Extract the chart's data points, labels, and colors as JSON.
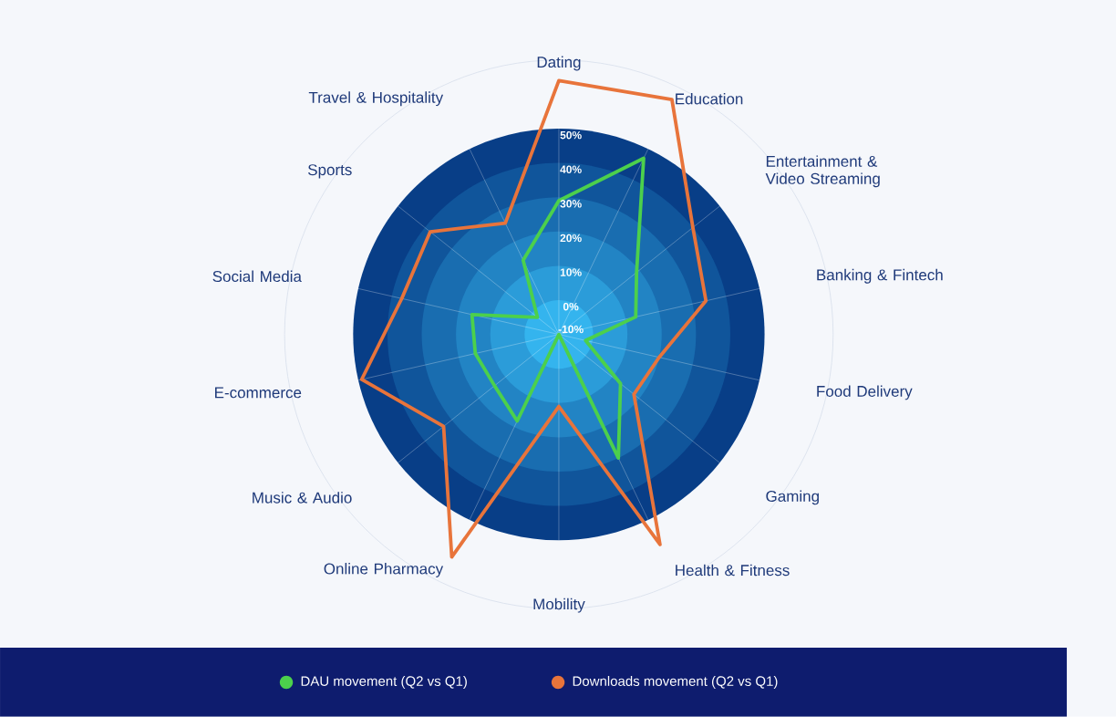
{
  "chart_data": {
    "type": "radar",
    "categories": [
      "Dating",
      "Education",
      "Entertainment & Video Streaming",
      "Banking & Fintech",
      "Food Delivery",
      "Gaming",
      "Health & Fitness",
      "Mobility",
      "Online Pharmacy",
      "Music & Audio",
      "E-commerce",
      "Social Media",
      "Sports",
      "Travel & Hospitality"
    ],
    "series": [
      {
        "name": "DAU movement (Q2 vs Q1)",
        "color": "#4cd04c",
        "values": [
          29,
          47,
          19,
          13,
          -2,
          13,
          30,
          -10,
          18,
          14,
          15,
          16,
          -2,
          14
        ]
      },
      {
        "name": "Downloads movement (Q2 vs Q1)",
        "color": "#e8743b",
        "values": [
          64,
          66,
          40,
          34,
          20,
          18,
          58,
          11,
          62,
          33,
          49,
          37,
          38,
          26
        ]
      }
    ],
    "ylim": [
      -10,
      70
    ],
    "yticks": [
      {
        "value": -10,
        "label": "-10%"
      },
      {
        "value": 0,
        "label": "0%"
      },
      {
        "value": 10,
        "label": "10%"
      },
      {
        "value": 20,
        "label": "20%"
      },
      {
        "value": 30,
        "label": "30%"
      },
      {
        "value": 40,
        "label": "40%"
      },
      {
        "value": 50,
        "label": "50%"
      }
    ],
    "grid": true,
    "legend": "bottom"
  }
}
